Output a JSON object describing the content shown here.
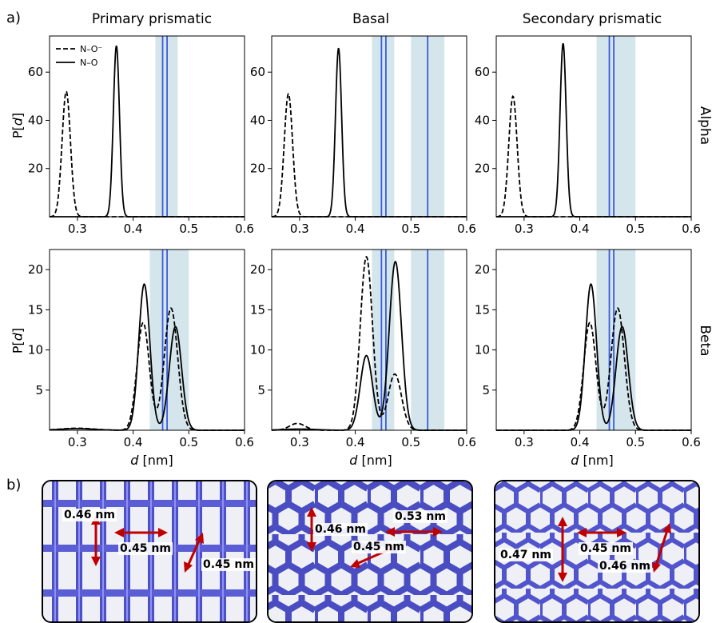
{
  "panel_labels": {
    "a": "a)",
    "b": "b)"
  },
  "columns": [
    "Primary prismatic",
    "Basal",
    "Secondary prismatic"
  ],
  "rows": [
    "Alpha",
    "Beta"
  ],
  "xlabel_var": "d",
  "xlabel_unit": " [nm]",
  "ylabel_prefix": "P[",
  "ylabel_var": "d",
  "ylabel_suffix": "]",
  "legend": [
    "N–O⁻",
    "N–O"
  ],
  "colors": {
    "curve": "#000000",
    "line": "#3b5bdb",
    "band": "#c5dde6"
  },
  "chart_data": [
    {
      "type": "line",
      "row": "Alpha",
      "column": "Primary prismatic",
      "xlim": [
        0.25,
        0.6
      ],
      "ylim": [
        0,
        75
      ],
      "xticks": [
        0.3,
        0.4,
        0.5,
        0.6
      ],
      "yticks": [
        20,
        40,
        60
      ],
      "series": [
        {
          "name": "N–O⁻",
          "style": "dashed",
          "peaks": [
            {
              "mu": 0.28,
              "height": 52,
              "sigma": 0.0075
            }
          ]
        },
        {
          "name": "N–O",
          "style": "solid",
          "peaks": [
            {
              "mu": 0.37,
              "height": 71,
              "sigma": 0.0055
            }
          ]
        }
      ],
      "bands": [
        [
          0.44,
          0.48
        ]
      ],
      "vlines": [
        0.453,
        0.461
      ]
    },
    {
      "type": "line",
      "row": "Alpha",
      "column": "Basal",
      "xlim": [
        0.25,
        0.6
      ],
      "ylim": [
        0,
        75
      ],
      "xticks": [
        0.3,
        0.4,
        0.5,
        0.6
      ],
      "yticks": [
        20,
        40,
        60
      ],
      "series": [
        {
          "name": "N–O⁻",
          "style": "dashed",
          "peaks": [
            {
              "mu": 0.28,
              "height": 51,
              "sigma": 0.0075
            }
          ]
        },
        {
          "name": "N–O",
          "style": "solid",
          "peaks": [
            {
              "mu": 0.37,
              "height": 70,
              "sigma": 0.0055
            }
          ]
        }
      ],
      "bands": [
        [
          0.43,
          0.47
        ],
        [
          0.5,
          0.56
        ]
      ],
      "vlines": [
        0.447,
        0.455,
        0.53
      ]
    },
    {
      "type": "line",
      "row": "Alpha",
      "column": "Secondary prismatic",
      "xlim": [
        0.25,
        0.6
      ],
      "ylim": [
        0,
        75
      ],
      "xticks": [
        0.3,
        0.4,
        0.5,
        0.6
      ],
      "yticks": [
        20,
        40,
        60
      ],
      "series": [
        {
          "name": "N–O⁻",
          "style": "dashed",
          "peaks": [
            {
              "mu": 0.28,
              "height": 50,
              "sigma": 0.0075
            }
          ]
        },
        {
          "name": "N–O",
          "style": "solid",
          "peaks": [
            {
              "mu": 0.37,
              "height": 72,
              "sigma": 0.0055
            }
          ]
        }
      ],
      "bands": [
        [
          0.43,
          0.5
        ]
      ],
      "vlines": [
        0.453,
        0.461
      ]
    },
    {
      "type": "line",
      "row": "Beta",
      "column": "Primary prismatic",
      "xlim": [
        0.25,
        0.6
      ],
      "ylim": [
        0,
        22.5
      ],
      "xticks": [
        0.3,
        0.4,
        0.5,
        0.6
      ],
      "yticks": [
        5,
        10,
        15,
        20
      ],
      "series": [
        {
          "name": "N–O⁻",
          "style": "dashed",
          "peaks": [
            {
              "mu": 0.418,
              "height": 13.4,
              "sigma": 0.011
            },
            {
              "mu": 0.468,
              "height": 15.2,
              "sigma": 0.012
            },
            {
              "mu": 0.3,
              "height": 0.25,
              "sigma": 0.03
            }
          ]
        },
        {
          "name": "N–O",
          "style": "solid",
          "peaks": [
            {
              "mu": 0.42,
              "height": 18.2,
              "sigma": 0.01
            },
            {
              "mu": 0.476,
              "height": 12.9,
              "sigma": 0.011
            },
            {
              "mu": 0.3,
              "height": 0.2,
              "sigma": 0.03
            }
          ]
        }
      ],
      "bands": [
        [
          0.43,
          0.5
        ]
      ],
      "vlines": [
        0.453,
        0.461
      ]
    },
    {
      "type": "line",
      "row": "Beta",
      "column": "Basal",
      "xlim": [
        0.25,
        0.6
      ],
      "ylim": [
        0,
        22.5
      ],
      "xticks": [
        0.3,
        0.4,
        0.5,
        0.6
      ],
      "yticks": [
        5,
        10,
        15,
        20
      ],
      "series": [
        {
          "name": "N–O⁻",
          "style": "dashed",
          "peaks": [
            {
              "mu": 0.42,
              "height": 21.6,
              "sigma": 0.011
            },
            {
              "mu": 0.471,
              "height": 7.0,
              "sigma": 0.012
            },
            {
              "mu": 0.296,
              "height": 0.85,
              "sigma": 0.014
            }
          ]
        },
        {
          "name": "N–O",
          "style": "solid",
          "peaks": [
            {
              "mu": 0.42,
              "height": 9.3,
              "sigma": 0.011
            },
            {
              "mu": 0.472,
              "height": 21.0,
              "sigma": 0.011
            },
            {
              "mu": 0.3,
              "height": 0.15,
              "sigma": 0.03
            }
          ]
        }
      ],
      "bands": [
        [
          0.43,
          0.47
        ],
        [
          0.5,
          0.56
        ]
      ],
      "vlines": [
        0.447,
        0.455,
        0.53
      ]
    },
    {
      "type": "line",
      "row": "Beta",
      "column": "Secondary prismatic",
      "xlim": [
        0.25,
        0.6
      ],
      "ylim": [
        0,
        22.5
      ],
      "xticks": [
        0.3,
        0.4,
        0.5,
        0.6
      ],
      "yticks": [
        5,
        10,
        15,
        20
      ],
      "series": [
        {
          "name": "N–O⁻",
          "style": "dashed",
          "peaks": [
            {
              "mu": 0.418,
              "height": 13.4,
              "sigma": 0.011
            },
            {
              "mu": 0.468,
              "height": 15.2,
              "sigma": 0.012
            }
          ]
        },
        {
          "name": "N–O",
          "style": "solid",
          "peaks": [
            {
              "mu": 0.42,
              "height": 18.2,
              "sigma": 0.01
            },
            {
              "mu": 0.476,
              "height": 12.9,
              "sigma": 0.011
            }
          ]
        }
      ],
      "bands": [
        [
          0.43,
          0.5
        ]
      ],
      "vlines": [
        0.453,
        0.461
      ]
    }
  ],
  "lattices": [
    {
      "name": "primary",
      "labels": [
        "0.46 nm",
        "0.45 nm",
        "0.45 nm"
      ]
    },
    {
      "name": "basal",
      "labels": [
        "0.46 nm",
        "0.53 nm",
        "0.45 nm"
      ]
    },
    {
      "name": "secondary",
      "labels": [
        "0.47 nm",
        "0.45 nm",
        "0.46 nm"
      ]
    }
  ]
}
